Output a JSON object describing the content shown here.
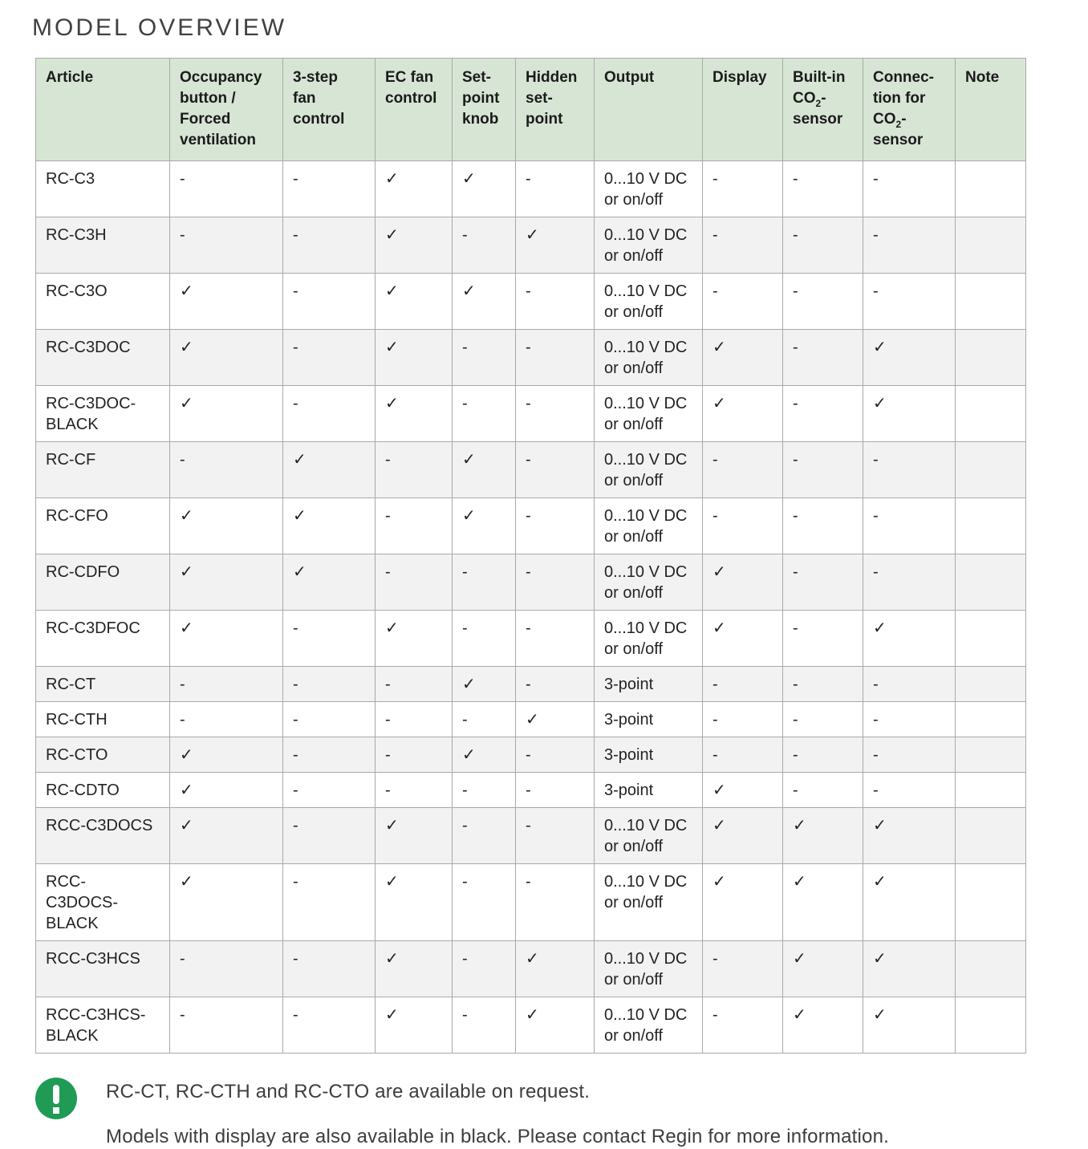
{
  "page": {
    "title": "MODEL OVERVIEW"
  },
  "colors": {
    "header_bg": "#d7e5d5",
    "row_alt_bg": "#f2f2f2",
    "border": "#a9a9a9",
    "note_icon_green": "#1f9b55"
  },
  "table": {
    "check_symbol": "✓",
    "dash_symbol": "-",
    "columns": [
      {
        "key": "article",
        "label": "Article"
      },
      {
        "key": "occupancy-forced-ventilation",
        "label": "Occupancy\nbutton /\nForced\nventilation"
      },
      {
        "key": "three-step-fan-control",
        "label": "3-step\nfan\ncontrol"
      },
      {
        "key": "ec-fan-control",
        "label": "EC fan\ncontrol"
      },
      {
        "key": "setpoint-knob",
        "label": "Set-\npoint\nknob"
      },
      {
        "key": "hidden-setpoint",
        "label": "Hidden\nset-\npoint"
      },
      {
        "key": "output",
        "label": "Output"
      },
      {
        "key": "display",
        "label": "Display"
      },
      {
        "key": "built-in-co2-sensor",
        "line1": "Built-in",
        "line2_pre": "CO",
        "line2_sub": "2",
        "line2_post": "-",
        "line3": "sensor"
      },
      {
        "key": "connection-co2-sensor",
        "line1": "Connec-",
        "line2": "tion for",
        "line3_pre": "CO",
        "line3_sub": "2",
        "line3_post": "-",
        "line4": "sensor"
      },
      {
        "key": "note",
        "label": "Note"
      }
    ],
    "rows": [
      {
        "cells": [
          "RC-C3",
          "-",
          "-",
          "✓",
          "✓",
          "-",
          "0...10 V DC\nor on/off",
          "-",
          "-",
          "-",
          ""
        ]
      },
      {
        "cells": [
          "RC-C3H",
          "-",
          "-",
          "✓",
          "-",
          "✓",
          "0...10 V DC\nor on/off",
          "-",
          "-",
          "-",
          ""
        ]
      },
      {
        "cells": [
          "RC-C3O",
          "✓",
          "-",
          "✓",
          "✓",
          "-",
          "0...10 V DC\nor on/off",
          "-",
          "-",
          "-",
          ""
        ]
      },
      {
        "cells": [
          "RC-C3DOC",
          "✓",
          "-",
          "✓",
          "-",
          "-",
          "0...10 V DC\nor on/off",
          "✓",
          "-",
          "✓",
          ""
        ]
      },
      {
        "cells": [
          "RC-C3DOC-\nBLACK",
          "✓",
          "-",
          "✓",
          "-",
          "-",
          "0...10 V DC\nor on/off",
          "✓",
          "-",
          "✓",
          ""
        ]
      },
      {
        "cells": [
          "RC-CF",
          "-",
          "✓",
          "-",
          "✓",
          "-",
          "0...10 V DC\nor on/off",
          "-",
          "-",
          "-",
          ""
        ]
      },
      {
        "cells": [
          "RC-CFO",
          "✓",
          "✓",
          "-",
          "✓",
          "-",
          "0...10 V DC\nor on/off",
          "-",
          "-",
          "-",
          ""
        ]
      },
      {
        "cells": [
          "RC-CDFO",
          "✓",
          "✓",
          "-",
          "-",
          "-",
          "0...10 V DC\nor on/off",
          "✓",
          "-",
          "-",
          ""
        ]
      },
      {
        "cells": [
          "RC-C3DFOC",
          "✓",
          "-",
          "✓",
          "-",
          "-",
          "0...10 V DC\nor on/off",
          "✓",
          "-",
          "✓",
          ""
        ]
      },
      {
        "cells": [
          "RC-CT",
          "-",
          "-",
          "-",
          "✓",
          "-",
          "3-point",
          "-",
          "-",
          "-",
          ""
        ]
      },
      {
        "cells": [
          "RC-CTH",
          "-",
          "-",
          "-",
          "-",
          "✓",
          "3-point",
          "-",
          "-",
          "-",
          ""
        ]
      },
      {
        "cells": [
          "RC-CTO",
          "✓",
          "-",
          "-",
          "✓",
          "-",
          "3-point",
          "-",
          "-",
          "-",
          ""
        ]
      },
      {
        "cells": [
          "RC-CDTO",
          "✓",
          "-",
          "-",
          "-",
          "-",
          "3-point",
          "✓",
          "-",
          "-",
          ""
        ]
      },
      {
        "cells": [
          "RCC-C3DOCS",
          "✓",
          "-",
          "✓",
          "-",
          "-",
          "0...10 V DC\nor on/off",
          "✓",
          "✓",
          "✓",
          ""
        ]
      },
      {
        "cells": [
          "RCC-\nC3DOCS-\nBLACK",
          "✓",
          "-",
          "✓",
          "-",
          "-",
          "0...10 V DC\nor on/off",
          "✓",
          "✓",
          "✓",
          ""
        ]
      },
      {
        "cells": [
          "RCC-C3HCS",
          "-",
          "-",
          "✓",
          "-",
          "✓",
          "0...10 V DC\nor on/off",
          "-",
          "✓",
          "✓",
          ""
        ]
      },
      {
        "cells": [
          "RCC-C3HCS-\nBLACK",
          "-",
          "-",
          "✓",
          "-",
          "✓",
          "0...10 V DC\nor on/off",
          "-",
          "✓",
          "✓",
          ""
        ]
      }
    ]
  },
  "notes": {
    "line1": "RC-CT, RC-CTH and RC-CTO are available on request.",
    "line2": "Models with display are also available in black. Please contact Regin for more information."
  }
}
